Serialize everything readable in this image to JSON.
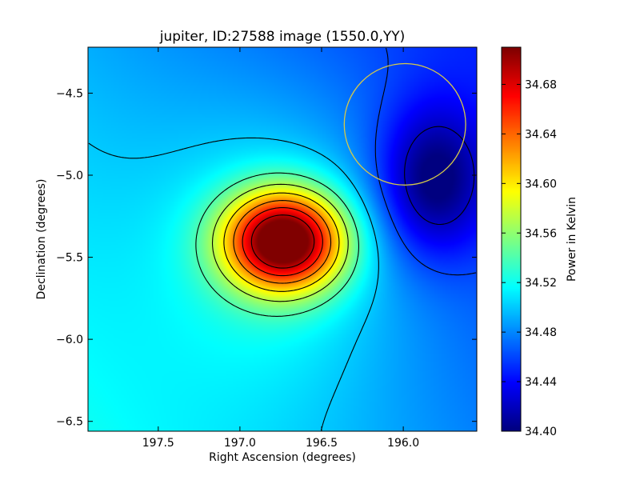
{
  "chart_data": {
    "type": "heatmap",
    "title": "jupiter, ID:27588 image (1550.0,YY)",
    "xlabel": "Right Ascension (degrees)",
    "ylabel": "Declination (degrees)",
    "colorbar_label": "Power in Kelvin",
    "colormap": "jet",
    "xlim": [
      197.93,
      195.55
    ],
    "ylim": [
      -6.56,
      -4.22
    ],
    "xticks": [
      197.5,
      197.0,
      196.5,
      196.0
    ],
    "xtick_labels": [
      "197.5",
      "197.0",
      "196.5",
      "196.0"
    ],
    "yticks": [
      -4.5,
      -5.0,
      -5.5,
      -6.0,
      -6.5
    ],
    "ytick_labels": [
      "−4.5",
      "−5.0",
      "−5.5",
      "−6.0",
      "−6.5"
    ],
    "colorbar_range": [
      34.4,
      34.71
    ],
    "colorbar_ticks": [
      34.4,
      34.44,
      34.48,
      34.52,
      34.56,
      34.6,
      34.64,
      34.68
    ],
    "colorbar_tick_labels": [
      "34.40",
      "34.44",
      "34.48",
      "34.52",
      "34.56",
      "34.60",
      "34.64",
      "34.68"
    ],
    "peak": {
      "ra": 196.73,
      "dec": -5.4,
      "value": 34.71
    },
    "minimum": {
      "ra": 195.82,
      "dec": -5.04,
      "value": 34.4
    },
    "marker_circle": {
      "ra": 195.99,
      "dec": -4.69,
      "radius_deg": 0.37,
      "color": "#d4c84a"
    },
    "contour_levels": [
      34.42,
      34.46,
      34.5,
      34.54,
      34.57,
      34.6,
      34.63,
      34.66,
      34.69
    ],
    "contour_color": "#000000"
  }
}
